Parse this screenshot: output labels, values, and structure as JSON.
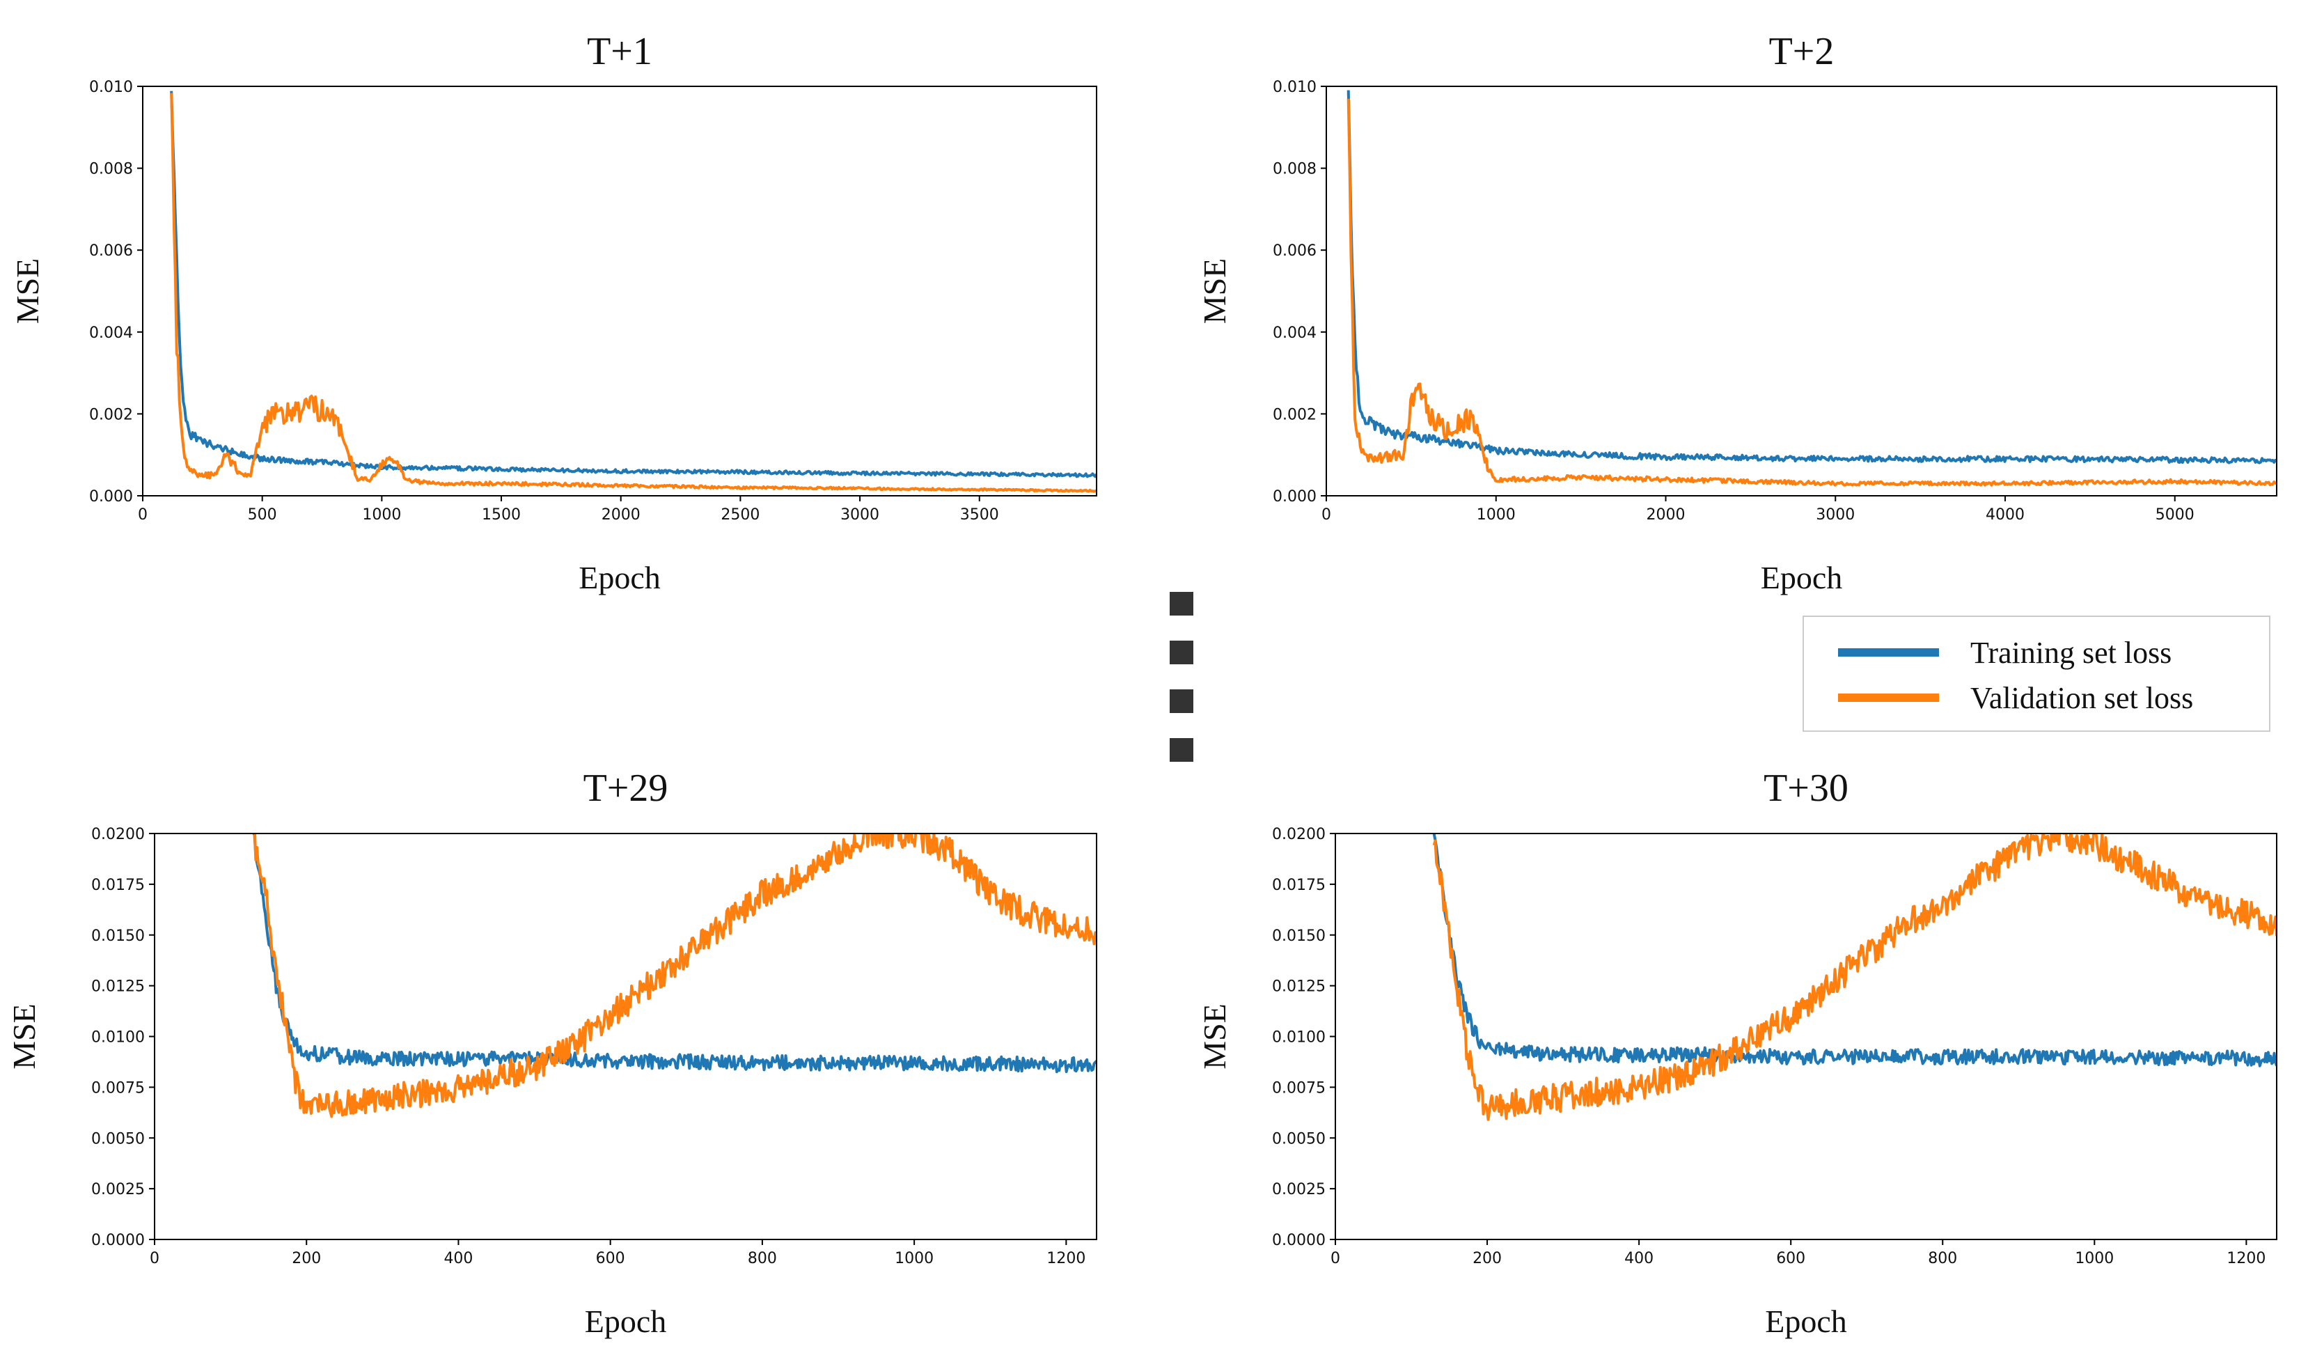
{
  "colors": {
    "training": "#1f77b4",
    "validation": "#ff7f0e",
    "axes": "#000000",
    "ellipsis": "#333333"
  },
  "legend": {
    "placement": "center-right",
    "training_label": "Training  set loss",
    "validation_label": "Validation  set loss"
  },
  "chart_data": [
    {
      "type": "line",
      "id": "t1",
      "title": "T+1",
      "xlabel": "Epoch",
      "ylabel": "MSE",
      "xlim": [
        0,
        3990
      ],
      "ylim": [
        0,
        0.01
      ],
      "xticks": [
        0,
        500,
        1000,
        1500,
        2000,
        2500,
        3000,
        3500
      ],
      "xtick_labels": [
        "0",
        "500",
        "1000",
        "1500",
        "2000",
        "2500",
        "3000",
        "3500"
      ],
      "yticks": [
        0,
        0.002,
        0.004,
        0.006,
        0.008,
        0.01
      ],
      "ytick_labels": [
        "0.000",
        "0.002",
        "0.004",
        "0.006",
        "0.008",
        "0.010"
      ],
      "series": [
        {
          "name": "Training set loss",
          "x": [
            120,
            140,
            160,
            180,
            200,
            300,
            500,
            800,
            1000,
            1500,
            2000,
            2500,
            3000,
            3500,
            3990
          ],
          "y": [
            0.01,
            0.006,
            0.003,
            0.0018,
            0.0015,
            0.0012,
            0.0009,
            0.0008,
            0.0007,
            0.00065,
            0.0006,
            0.00058,
            0.00055,
            0.00053,
            0.0005
          ]
        },
        {
          "name": "Validation set loss",
          "x": [
            120,
            140,
            160,
            180,
            200,
            250,
            300,
            350,
            400,
            450,
            500,
            550,
            600,
            700,
            800,
            850,
            900,
            950,
            1000,
            1050,
            1100,
            1200,
            1500,
            2000,
            2500,
            3000,
            3500,
            3990
          ],
          "y": [
            0.01,
            0.004,
            0.0015,
            0.0008,
            0.0006,
            0.0005,
            0.0005,
            0.001,
            0.0006,
            0.0005,
            0.0017,
            0.002,
            0.002,
            0.0022,
            0.002,
            0.0012,
            0.0004,
            0.0004,
            0.0008,
            0.0009,
            0.0004,
            0.0003,
            0.0003,
            0.00025,
            0.0002,
            0.00018,
            0.00015,
            0.00012
          ]
        }
      ]
    },
    {
      "type": "line",
      "id": "t2",
      "title": "T+2",
      "xlabel": "Epoch",
      "ylabel": "MSE",
      "xlim": [
        0,
        5600
      ],
      "ylim": [
        0,
        0.01
      ],
      "xticks": [
        0,
        1000,
        2000,
        3000,
        4000,
        5000
      ],
      "xtick_labels": [
        "0",
        "1000",
        "2000",
        "3000",
        "4000",
        "5000"
      ],
      "yticks": [
        0,
        0.002,
        0.004,
        0.006,
        0.008,
        0.01
      ],
      "ytick_labels": [
        "0.000",
        "0.002",
        "0.004",
        "0.006",
        "0.008",
        "0.010"
      ],
      "series": [
        {
          "name": "Training set loss",
          "x": [
            130,
            150,
            170,
            200,
            250,
            400,
            600,
            900,
            1000,
            1500,
            2000,
            3000,
            4000,
            5000,
            5600
          ],
          "y": [
            0.01,
            0.006,
            0.0035,
            0.002,
            0.0018,
            0.0015,
            0.0014,
            0.0012,
            0.0011,
            0.001,
            0.00095,
            0.0009,
            0.0009,
            0.00088,
            0.00085
          ]
        },
        {
          "name": "Validation set loss",
          "x": [
            130,
            150,
            170,
            200,
            250,
            300,
            400,
            450,
            500,
            550,
            600,
            700,
            800,
            850,
            900,
            950,
            1000,
            1100,
            1500,
            2000,
            3000,
            4000,
            5000,
            5600
          ],
          "y": [
            0.01,
            0.005,
            0.002,
            0.0012,
            0.0009,
            0.0009,
            0.001,
            0.0009,
            0.0022,
            0.0026,
            0.002,
            0.0016,
            0.0018,
            0.0019,
            0.0014,
            0.0007,
            0.0004,
            0.0004,
            0.00045,
            0.0004,
            0.0003,
            0.0003,
            0.00035,
            0.0003
          ]
        }
      ]
    },
    {
      "type": "line",
      "id": "t29",
      "title": "T+29",
      "xlabel": "Epoch",
      "ylabel": "MSE",
      "xlim": [
        0,
        1240
      ],
      "ylim": [
        0,
        0.02
      ],
      "xticks": [
        0,
        200,
        400,
        600,
        800,
        1000,
        1200
      ],
      "xtick_labels": [
        "0",
        "200",
        "400",
        "600",
        "800",
        "1000",
        "1200"
      ],
      "yticks": [
        0,
        0.0025,
        0.005,
        0.0075,
        0.01,
        0.0125,
        0.015,
        0.0175,
        0.02
      ],
      "ytick_labels": [
        "0.0000",
        "0.0025",
        "0.0050",
        "0.0075",
        "0.0100",
        "0.0125",
        "0.0150",
        "0.0175",
        "0.0200"
      ],
      "series": [
        {
          "name": "Training set loss",
          "x": [
            130,
            140,
            150,
            160,
            170,
            180,
            190,
            200,
            250,
            300,
            400,
            500,
            600,
            800,
            1000,
            1240
          ],
          "y": [
            0.02,
            0.0175,
            0.015,
            0.0125,
            0.011,
            0.01,
            0.0095,
            0.0092,
            0.009,
            0.0089,
            0.0089,
            0.0089,
            0.0088,
            0.0087,
            0.0087,
            0.0086
          ]
        },
        {
          "name": "Validation set loss",
          "x": [
            130,
            150,
            170,
            190,
            200,
            250,
            300,
            350,
            400,
            450,
            500,
            550,
            600,
            650,
            700,
            750,
            800,
            850,
            900,
            950,
            1000,
            1050,
            1100,
            1150,
            1200,
            1240
          ],
          "y": [
            0.02,
            0.016,
            0.011,
            0.007,
            0.0065,
            0.0068,
            0.007,
            0.0072,
            0.0075,
            0.008,
            0.0085,
            0.0095,
            0.011,
            0.0125,
            0.014,
            0.0155,
            0.017,
            0.018,
            0.019,
            0.02,
            0.02,
            0.019,
            0.017,
            0.016,
            0.0155,
            0.015
          ]
        }
      ]
    },
    {
      "type": "line",
      "id": "t30",
      "title": "T+30",
      "xlabel": "Epoch",
      "ylabel": "MSE",
      "xlim": [
        0,
        1240
      ],
      "ylim": [
        0,
        0.02
      ],
      "xticks": [
        0,
        200,
        400,
        600,
        800,
        1000,
        1200
      ],
      "xtick_labels": [
        "0",
        "200",
        "400",
        "600",
        "800",
        "1000",
        "1200"
      ],
      "yticks": [
        0,
        0.0025,
        0.005,
        0.0075,
        0.01,
        0.0125,
        0.015,
        0.0175,
        0.02
      ],
      "ytick_labels": [
        "0.0000",
        "0.0025",
        "0.0050",
        "0.0075",
        "0.0100",
        "0.0125",
        "0.0150",
        "0.0175",
        "0.0200"
      ],
      "series": [
        {
          "name": "Training set loss",
          "x": [
            130,
            140,
            150,
            160,
            170,
            180,
            190,
            200,
            250,
            300,
            400,
            500,
            600,
            800,
            1000,
            1240
          ],
          "y": [
            0.02,
            0.0175,
            0.015,
            0.013,
            0.0115,
            0.0105,
            0.0098,
            0.0095,
            0.0092,
            0.0091,
            0.0091,
            0.0091,
            0.009,
            0.009,
            0.009,
            0.0089
          ]
        },
        {
          "name": "Validation set loss",
          "x": [
            130,
            150,
            170,
            190,
            200,
            250,
            300,
            350,
            400,
            450,
            500,
            550,
            600,
            650,
            700,
            750,
            800,
            850,
            900,
            950,
            1000,
            1050,
            1100,
            1150,
            1200,
            1240
          ],
          "y": [
            0.02,
            0.015,
            0.01,
            0.007,
            0.0065,
            0.0068,
            0.007,
            0.0073,
            0.0075,
            0.008,
            0.0088,
            0.0098,
            0.011,
            0.0125,
            0.014,
            0.0155,
            0.0165,
            0.018,
            0.019,
            0.02,
            0.0195,
            0.0185,
            0.0175,
            0.0165,
            0.016,
            0.0155
          ]
        }
      ]
    }
  ]
}
